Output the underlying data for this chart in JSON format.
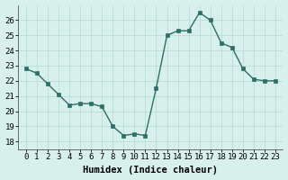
{
  "x": [
    0,
    1,
    2,
    3,
    4,
    5,
    6,
    7,
    8,
    9,
    10,
    11,
    12,
    13,
    14,
    15,
    16,
    17,
    18,
    19,
    20,
    21,
    22,
    23
  ],
  "y": [
    22.8,
    22.5,
    21.8,
    21.1,
    20.4,
    20.5,
    20.5,
    20.3,
    19.0,
    18.4,
    18.5,
    18.4,
    21.5,
    25.0,
    25.3,
    25.3,
    26.5,
    26.0,
    24.5,
    24.2,
    22.8,
    22.1,
    22.0,
    22.0
  ],
  "line_color": "#2d6e65",
  "marker_color": "#2d6e65",
  "bg_color": "#d8f0ec",
  "grid_color": "#b8ddd8",
  "xlabel": "Humidex (Indice chaleur)",
  "ylim": [
    17.5,
    27.0
  ],
  "yticks": [
    18,
    19,
    20,
    21,
    22,
    23,
    24,
    25,
    26
  ],
  "xticks": [
    0,
    1,
    2,
    3,
    4,
    5,
    6,
    7,
    8,
    9,
    10,
    11,
    12,
    13,
    14,
    15,
    16,
    17,
    18,
    19,
    20,
    21,
    22,
    23
  ],
  "xlabel_fontsize": 7.5,
  "tick_fontsize": 6.5,
  "line_width": 1.0,
  "marker_size": 2.5
}
